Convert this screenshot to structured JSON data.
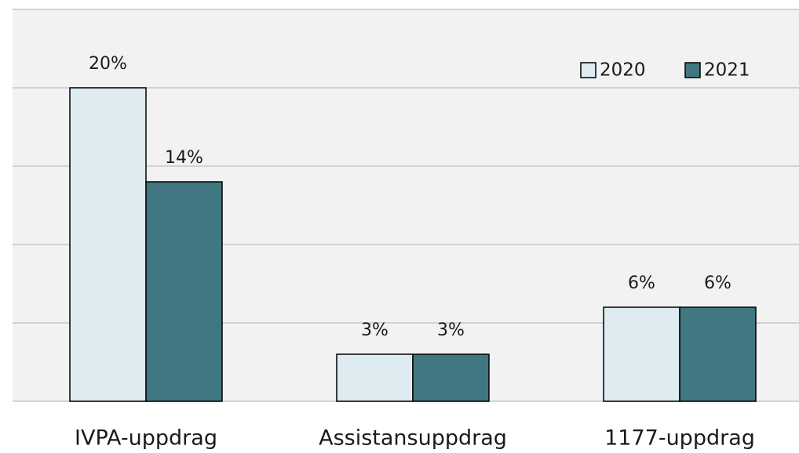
{
  "chart_data": {
    "type": "bar",
    "categories": [
      "IVPA-uppdrag",
      "Assistansuppdrag",
      "1177-uppdrag"
    ],
    "series": [
      {
        "name": "2020",
        "color": "#deebf0",
        "values": [
          20,
          3,
          6
        ],
        "value_labels": [
          "20%",
          "3%",
          "6%"
        ]
      },
      {
        "name": "2021",
        "color": "#417780",
        "values": [
          14,
          3,
          6
        ],
        "value_labels": [
          "14%",
          "3%",
          "6%"
        ]
      }
    ],
    "ylim": [
      0,
      25
    ],
    "yticks": [
      0,
      5,
      10,
      15,
      20,
      25
    ],
    "grid": true,
    "legend": "top-right"
  }
}
